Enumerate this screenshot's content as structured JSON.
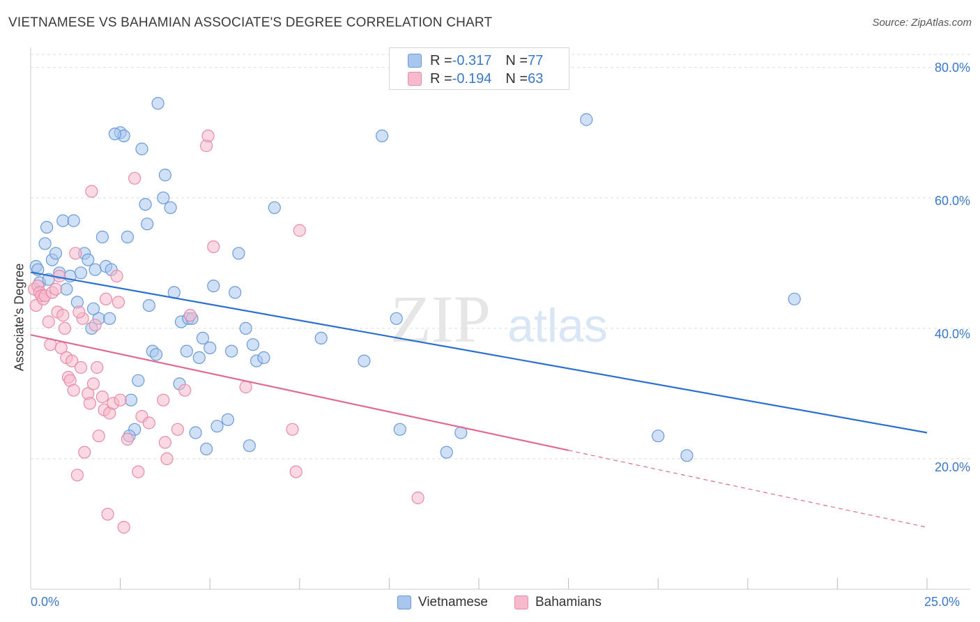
{
  "header": {
    "title": "VIETNAMESE VS BAHAMIAN ASSOCIATE'S DEGREE CORRELATION CHART",
    "source": "Source: ZipAtlas.com"
  },
  "watermark": {
    "zip": "ZIP",
    "atlas": "atlas"
  },
  "colors": {
    "blue_fill": "#a9c6ee",
    "blue_stroke": "#6b9ad8",
    "blue_line": "#2b6fcf",
    "pink_fill": "#f7b9cc",
    "pink_stroke": "#e88aa8",
    "pink_line": "#e06a94",
    "grid": "#dddddd",
    "axis_text": "#3a78c9"
  },
  "legend": {
    "rows": [
      {
        "r_label": "R = ",
        "r_value": "-0.317",
        "n_label": "N = ",
        "n_value": "77"
      },
      {
        "r_label": "R = ",
        "r_value": "-0.194",
        "n_label": "N = ",
        "n_value": "63"
      }
    ]
  },
  "chart_data": {
    "type": "scatter",
    "title": "VIETNAMESE VS BAHAMIAN ASSOCIATE'S DEGREE CORRELATION CHART",
    "xlabel": "",
    "ylabel": "Associate's Degree",
    "xlim": [
      0,
      25
    ],
    "ylim": [
      0,
      82
    ],
    "x_tick_labels": [
      "0.0%",
      "25.0%"
    ],
    "y_ticks": [
      20,
      40,
      60,
      80
    ],
    "y_tick_labels": [
      "20.0%",
      "40.0%",
      "60.0%",
      "80.0%"
    ],
    "grid": true,
    "legend_position": "top-center",
    "series": [
      {
        "name": "Vietnamese",
        "r": -0.317,
        "n": 77,
        "trend": {
          "x0": 0,
          "y0": 48.6,
          "x1": 25,
          "y1": 24.0,
          "solid_until": 25
        },
        "points": [
          [
            0.15,
            49.5
          ],
          [
            0.2,
            49.0
          ],
          [
            0.25,
            47.0
          ],
          [
            0.4,
            53.0
          ],
          [
            0.45,
            55.5
          ],
          [
            0.5,
            47.5
          ],
          [
            0.6,
            50.5
          ],
          [
            0.7,
            51.5
          ],
          [
            0.8,
            48.5
          ],
          [
            0.9,
            56.5
          ],
          [
            1.0,
            46.0
          ],
          [
            1.1,
            48.0
          ],
          [
            1.2,
            56.5
          ],
          [
            1.3,
            44.0
          ],
          [
            1.4,
            48.5
          ],
          [
            1.5,
            51.5
          ],
          [
            1.6,
            50.5
          ],
          [
            1.7,
            40.0
          ],
          [
            1.8,
            49.0
          ],
          [
            1.9,
            41.5
          ],
          [
            2.0,
            54.0
          ],
          [
            2.1,
            49.5
          ],
          [
            2.2,
            41.5
          ],
          [
            2.25,
            49.0
          ],
          [
            2.5,
            70.0
          ],
          [
            2.6,
            69.5
          ],
          [
            2.7,
            54.0
          ],
          [
            2.8,
            29.0
          ],
          [
            2.9,
            24.5
          ],
          [
            3.0,
            32.0
          ],
          [
            3.1,
            67.5
          ],
          [
            3.2,
            59.0
          ],
          [
            3.25,
            56.0
          ],
          [
            3.3,
            43.5
          ],
          [
            3.4,
            36.5
          ],
          [
            3.5,
            36.0
          ],
          [
            3.55,
            74.5
          ],
          [
            3.7,
            60.0
          ],
          [
            3.75,
            63.5
          ],
          [
            3.9,
            58.5
          ],
          [
            4.0,
            45.5
          ],
          [
            4.15,
            31.5
          ],
          [
            4.2,
            41.0
          ],
          [
            4.35,
            36.5
          ],
          [
            4.4,
            41.5
          ],
          [
            4.5,
            41.5
          ],
          [
            4.6,
            24.0
          ],
          [
            4.7,
            35.5
          ],
          [
            4.8,
            38.5
          ],
          [
            4.9,
            21.5
          ],
          [
            5.0,
            37.0
          ],
          [
            5.1,
            46.5
          ],
          [
            5.2,
            25.0
          ],
          [
            5.5,
            26.0
          ],
          [
            5.6,
            36.5
          ],
          [
            5.7,
            45.5
          ],
          [
            5.8,
            51.5
          ],
          [
            6.0,
            40.0
          ],
          [
            6.1,
            22.0
          ],
          [
            6.2,
            37.5
          ],
          [
            6.3,
            35.0
          ],
          [
            6.5,
            35.5
          ],
          [
            6.8,
            58.5
          ],
          [
            8.1,
            38.5
          ],
          [
            9.3,
            35.0
          ],
          [
            9.8,
            69.5
          ],
          [
            10.2,
            41.5
          ],
          [
            10.3,
            24.5
          ],
          [
            11.6,
            21.0
          ],
          [
            12.0,
            24.0
          ],
          [
            15.5,
            72.0
          ],
          [
            17.5,
            23.5
          ],
          [
            18.3,
            20.5
          ],
          [
            21.3,
            44.5
          ],
          [
            2.75,
            23.5
          ],
          [
            1.75,
            43.0
          ],
          [
            2.35,
            69.8
          ]
        ]
      },
      {
        "name": "Bahamians",
        "r": -0.194,
        "n": 63,
        "trend": {
          "x0": 0,
          "y0": 39.0,
          "x1": 25,
          "y1": 9.5,
          "solid_until": 15.0
        },
        "points": [
          [
            0.1,
            46.0
          ],
          [
            0.15,
            43.5
          ],
          [
            0.2,
            46.5
          ],
          [
            0.25,
            45.5
          ],
          [
            0.3,
            45.0
          ],
          [
            0.35,
            44.5
          ],
          [
            0.4,
            45.0
          ],
          [
            0.5,
            41.0
          ],
          [
            0.55,
            37.5
          ],
          [
            0.6,
            45.5
          ],
          [
            0.7,
            46.0
          ],
          [
            0.75,
            42.5
          ],
          [
            0.8,
            48.0
          ],
          [
            0.85,
            37.0
          ],
          [
            0.9,
            42.0
          ],
          [
            0.95,
            40.0
          ],
          [
            1.0,
            35.5
          ],
          [
            1.05,
            32.5
          ],
          [
            1.1,
            32.0
          ],
          [
            1.15,
            35.0
          ],
          [
            1.2,
            30.5
          ],
          [
            1.25,
            51.5
          ],
          [
            1.3,
            17.5
          ],
          [
            1.4,
            34.0
          ],
          [
            1.45,
            41.5
          ],
          [
            1.5,
            21.0
          ],
          [
            1.6,
            30.0
          ],
          [
            1.65,
            28.5
          ],
          [
            1.7,
            61.0
          ],
          [
            1.75,
            31.5
          ],
          [
            1.8,
            40.5
          ],
          [
            1.85,
            34.0
          ],
          [
            1.9,
            23.5
          ],
          [
            2.0,
            29.5
          ],
          [
            2.05,
            27.5
          ],
          [
            2.1,
            44.5
          ],
          [
            2.15,
            11.5
          ],
          [
            2.2,
            27.0
          ],
          [
            2.3,
            28.5
          ],
          [
            2.4,
            48.0
          ],
          [
            2.45,
            44.0
          ],
          [
            2.5,
            29.0
          ],
          [
            2.6,
            9.5
          ],
          [
            2.7,
            23.0
          ],
          [
            2.9,
            63.0
          ],
          [
            3.0,
            18.0
          ],
          [
            3.1,
            26.5
          ],
          [
            3.3,
            25.5
          ],
          [
            3.7,
            29.0
          ],
          [
            3.75,
            22.5
          ],
          [
            3.8,
            20.0
          ],
          [
            4.1,
            24.5
          ],
          [
            4.3,
            30.5
          ],
          [
            4.45,
            42.0
          ],
          [
            4.9,
            68.0
          ],
          [
            4.95,
            69.5
          ],
          [
            5.1,
            52.5
          ],
          [
            6.0,
            31.0
          ],
          [
            7.3,
            24.5
          ],
          [
            7.4,
            18.0
          ],
          [
            7.5,
            55.0
          ],
          [
            10.8,
            14.0
          ],
          [
            1.35,
            42.5
          ]
        ]
      }
    ]
  },
  "bottom_legend": {
    "items": [
      {
        "label": "Vietnamese"
      },
      {
        "label": "Bahamians"
      }
    ]
  }
}
